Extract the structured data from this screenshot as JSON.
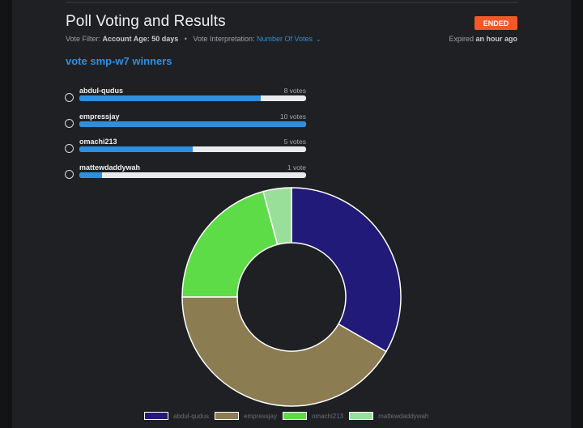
{
  "header": {
    "title": "Poll Voting and Results",
    "status_badge": "ENDED",
    "filter_label": "Vote Filter:",
    "filter_value": "Account Age: 50 days",
    "separator": "•",
    "interpretation_label": "Vote Interpretation:",
    "interpretation_value": "Number Of Votes",
    "expired_label": "Expired",
    "expired_value": "an hour ago"
  },
  "poll": {
    "question": "vote smp-w7 winners",
    "options": [
      {
        "name": "abdul-qudus",
        "votes_label": "8 votes",
        "fraction": 0.8
      },
      {
        "name": "empressjay",
        "votes_label": "10 votes",
        "fraction": 1.0
      },
      {
        "name": "omachi213",
        "votes_label": "5 votes",
        "fraction": 0.5
      },
      {
        "name": "mattewdaddywah",
        "votes_label": "1 vote",
        "fraction": 0.1
      }
    ]
  },
  "colors": {
    "accent": "#2d8fe0",
    "badge": "#f0592a"
  },
  "chart_data": {
    "type": "pie",
    "donut": true,
    "categories": [
      "abdul-qudus",
      "empressjay",
      "omachi213",
      "mattewdaddywah"
    ],
    "values": [
      8,
      10,
      5,
      1
    ],
    "colors": [
      "#221a78",
      "#8c7c52",
      "#5ddc48",
      "#99df99"
    ],
    "legend_position": "bottom"
  }
}
